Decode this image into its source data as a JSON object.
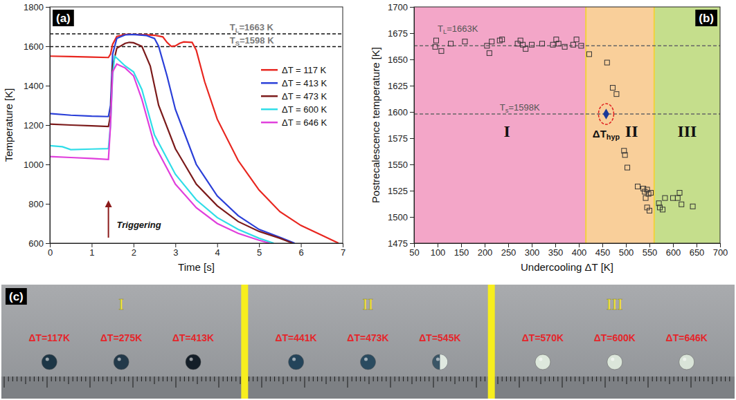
{
  "chart_data": [
    {
      "type": "line",
      "panel_label": "(a)",
      "x_label": "Time [s]",
      "y_label": "Temperature [K]",
      "xlim": [
        0,
        7
      ],
      "xticks": [
        0,
        1,
        2,
        3,
        4,
        5,
        6,
        7
      ],
      "ylim": [
        600,
        1800
      ],
      "yticks": [
        600,
        800,
        1000,
        1200,
        1400,
        1600,
        1800
      ],
      "legend": "right",
      "series": [
        {
          "name": "ΔT = 117 K",
          "color": "#e8261f",
          "x": [
            0,
            0.5,
            1.0,
            1.4,
            1.45,
            1.5,
            1.6,
            1.8,
            2.0,
            2.3,
            2.5,
            2.7,
            2.8,
            2.9,
            3.0,
            3.1,
            3.2,
            3.4,
            3.5,
            3.7,
            4.0,
            4.5,
            5.0,
            5.5,
            6.0,
            6.5,
            6.9
          ],
          "values": [
            1550,
            1548,
            1545,
            1543,
            1560,
            1610,
            1650,
            1660,
            1660,
            1658,
            1656,
            1648,
            1620,
            1600,
            1602,
            1615,
            1622,
            1620,
            1580,
            1420,
            1230,
            1020,
            870,
            760,
            690,
            640,
            600
          ]
        },
        {
          "name": "ΔT = 413 K",
          "color": "#2a3fd8",
          "x": [
            0,
            0.5,
            1.0,
            1.4,
            1.45,
            1.5,
            1.6,
            1.8,
            2.0,
            2.3,
            2.5,
            2.6,
            2.8,
            3.0,
            3.5,
            4.0,
            4.5,
            5.0,
            5.5,
            5.85
          ],
          "values": [
            1258,
            1250,
            1245,
            1243,
            1300,
            1560,
            1640,
            1658,
            1660,
            1655,
            1640,
            1600,
            1450,
            1280,
            1000,
            840,
            740,
            670,
            630,
            600
          ]
        },
        {
          "name": "ΔT = 473 K",
          "color": "#7b1a1a",
          "x": [
            0,
            0.5,
            1.0,
            1.4,
            1.45,
            1.5,
            1.6,
            1.8,
            1.9,
            2.0,
            2.2,
            2.4,
            2.6,
            3.0,
            3.5,
            4.0,
            4.5,
            5.0,
            5.5,
            5.8
          ],
          "values": [
            1205,
            1200,
            1196,
            1193,
            1250,
            1500,
            1590,
            1615,
            1620,
            1618,
            1600,
            1500,
            1300,
            1080,
            900,
            790,
            710,
            660,
            625,
            600
          ]
        },
        {
          "name": "ΔT = 600 K",
          "color": "#2fdde8",
          "x": [
            0,
            0.3,
            0.5,
            1.0,
            1.4,
            1.45,
            1.5,
            1.55,
            1.8,
            2.0,
            2.2,
            2.5,
            3.0,
            3.5,
            4.0,
            4.5,
            5.0,
            5.35
          ],
          "values": [
            1095,
            1090,
            1075,
            1078,
            1080,
            1200,
            1450,
            1550,
            1500,
            1470,
            1380,
            1150,
            950,
            820,
            730,
            670,
            625,
            600
          ]
        },
        {
          "name": "ΔT = 646 K",
          "color": "#e03fdc",
          "x": [
            0,
            0.5,
            1.0,
            1.4,
            1.45,
            1.5,
            1.6,
            1.8,
            2.0,
            2.2,
            2.5,
            3.0,
            3.5,
            4.0,
            4.5,
            5.0,
            5.25
          ],
          "values": [
            1040,
            1035,
            1030,
            1025,
            1200,
            1470,
            1510,
            1490,
            1450,
            1330,
            1100,
            900,
            780,
            700,
            650,
            615,
            600
          ]
        }
      ],
      "ref_lines": [
        {
          "y": 1663,
          "label_main": "T",
          "label_sub": "L",
          "label_rest": "=1663 K"
        },
        {
          "y": 1598,
          "label_main": "T",
          "label_sub": "S",
          "label_rest": "=1598 K"
        }
      ],
      "annotations": [
        {
          "text": "Triggering",
          "x": 1.4
        }
      ]
    },
    {
      "type": "scatter",
      "panel_label": "(b)",
      "x_label": "Undercooling ΔT [K]",
      "y_label": "Postrecalescence temperature [K]",
      "xlim": [
        50,
        700
      ],
      "xticks": [
        50,
        100,
        150,
        200,
        250,
        300,
        350,
        400,
        450,
        500,
        550,
        600,
        650,
        700
      ],
      "ylim": [
        1475,
        1700
      ],
      "yticks": [
        1475,
        1500,
        1525,
        1550,
        1575,
        1600,
        1625,
        1650,
        1675,
        1700
      ],
      "series": [
        {
          "marker": "square",
          "color": "#333333",
          "x": [
            95,
            97,
            108,
            128,
            158,
            205,
            210,
            215,
            232,
            237,
            270,
            276,
            281,
            287,
            300,
            322,
            345,
            352,
            357,
            370,
            388,
            395,
            405,
            422,
            460,
            472,
            480,
            496,
            498,
            503,
            525,
            537,
            540,
            542,
            545,
            545,
            548,
            550,
            553,
            570,
            572,
            578,
            583,
            600,
            610,
            614,
            618,
            642
          ],
          "values": [
            1662,
            1668,
            1658,
            1665,
            1667,
            1663,
            1656,
            1667,
            1668,
            1669,
            1665,
            1668,
            1664,
            1660,
            1664,
            1665,
            1664,
            1669,
            1665,
            1662,
            1664,
            1669,
            1663,
            1655,
            1647,
            1623,
            1617,
            1563,
            1559,
            1547,
            1529,
            1527,
            1524,
            1518,
            1509,
            1526,
            1522,
            1506,
            1523,
            1513,
            1509,
            1507,
            1518,
            1518,
            1518,
            1523,
            1512,
            1510
          ]
        }
      ],
      "regions": [
        {
          "label": "I",
          "from": 50,
          "to": 415,
          "color": "#f3a6c8"
        },
        {
          "label": "II",
          "from": 415,
          "to": 560,
          "color": "#f9cf9a"
        },
        {
          "label": "III",
          "from": 560,
          "to": 700,
          "color": "#c5de8c"
        }
      ],
      "ref_lines": [
        {
          "y": 1663,
          "label_main": "T",
          "label_sub": "L",
          "label_rest": "=1663K"
        },
        {
          "y": 1598,
          "label_main": "T",
          "label_sub": "s",
          "label_rest": "=1598K"
        }
      ],
      "highlight": {
        "x": 458,
        "y": 1598,
        "label_main": "ΔT",
        "label_sub": "hyp",
        "marker": "diamond",
        "color": "#1a3a9a"
      }
    }
  ],
  "photo": {
    "label": "(c)",
    "groups": [
      {
        "name": "I",
        "samples": [
          {
            "label": "ΔT=117K",
            "color": "#1d3646"
          },
          {
            "label": "ΔT=275K",
            "color": "#22394a"
          },
          {
            "label": "ΔT=413K",
            "color": "#141e28"
          }
        ]
      },
      {
        "name": "II",
        "samples": [
          {
            "label": "ΔT=441K",
            "color": "#24445a"
          },
          {
            "label": "ΔT=473K",
            "color": "#2a4b60"
          },
          {
            "label": "ΔT=545K",
            "color": "#3a5566",
            "secondary_color": "#dfe8e0"
          }
        ]
      },
      {
        "name": "III",
        "samples": [
          {
            "label": "ΔT=570K",
            "color": "#dde8dc"
          },
          {
            "label": "ΔT=600K",
            "color": "#dbe6da"
          },
          {
            "label": "ΔT=646K",
            "color": "#d9e4d8"
          }
        ]
      }
    ]
  }
}
